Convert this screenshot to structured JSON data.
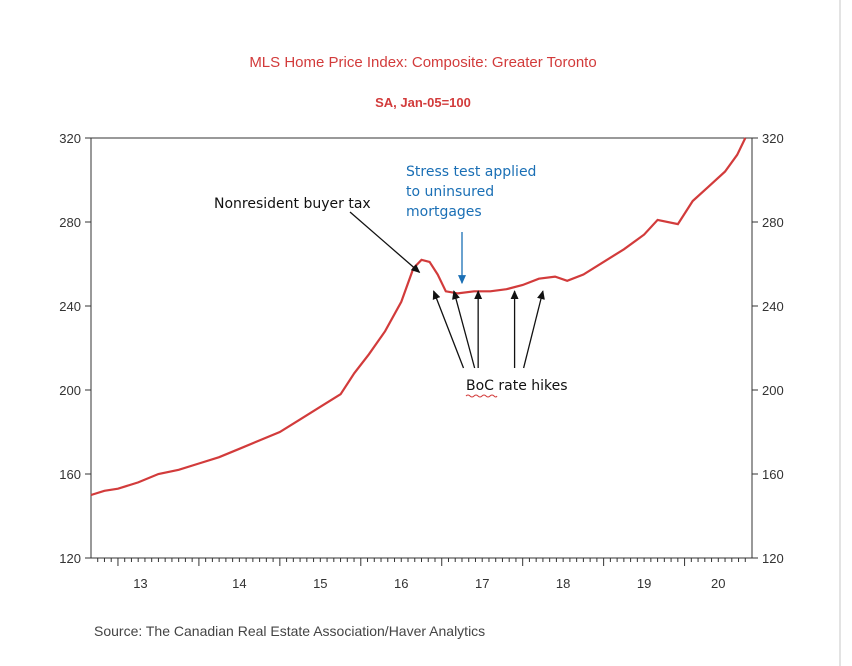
{
  "chart_data": {
    "type": "line",
    "title": "MLS Home Price Index: Composite: Greater Toronto",
    "subtitle": "SA, Jan-05=100",
    "xlabel": "",
    "ylabel": "",
    "x_ticks": [
      "13",
      "14",
      "15",
      "16",
      "17",
      "18",
      "19",
      "20"
    ],
    "y_ticks": [
      "120",
      "160",
      "200",
      "240",
      "280",
      "320"
    ],
    "ylim": [
      120,
      320
    ],
    "xlim": [
      2012.667,
      2020.833
    ],
    "grid": false,
    "series": [
      {
        "color": "#d23b3b",
        "x": [
          2012.667,
          2012.833,
          2013.0,
          2013.25,
          2013.5,
          2013.75,
          2014.0,
          2014.25,
          2014.5,
          2014.75,
          2015.0,
          2015.25,
          2015.5,
          2015.75,
          2015.92,
          2016.1,
          2016.3,
          2016.5,
          2016.65,
          2016.75,
          2016.85,
          2016.95,
          2017.05,
          2017.2,
          2017.4,
          2017.6,
          2017.8,
          2018.0,
          2018.2,
          2018.4,
          2018.55,
          2018.75,
          2019.0,
          2019.25,
          2019.5,
          2019.667,
          2019.917,
          2020.1,
          2020.3,
          2020.5,
          2020.65,
          2020.75
        ],
        "values": [
          150,
          152,
          153,
          156,
          160,
          162,
          165,
          168,
          172,
          176,
          180,
          186,
          192,
          198,
          208,
          217,
          228,
          242,
          258,
          262,
          261,
          255,
          247,
          246,
          247,
          247,
          248,
          250,
          253,
          254,
          252,
          255,
          261,
          267,
          274,
          281,
          279,
          290,
          297,
          304,
          312,
          320
        ]
      }
    ],
    "annotations": [
      {
        "text": "Nonresident buyer tax",
        "x": 2016.8,
        "y": 256
      },
      {
        "text": "Stress test applied",
        "line2": "to uninsured",
        "line3": "mortgages",
        "x": 2017.25,
        "y": 249
      },
      {
        "text": "BoC rate hikes",
        "arrow_x": [
          2016.9,
          2017.15,
          2017.45,
          2017.9,
          2018.25
        ],
        "arrow_y": 249
      }
    ],
    "source": "Source:   The Canadian Real Estate Association/Haver Analytics"
  },
  "colors": {
    "line": "#d23b3b",
    "title": "#d23b3b",
    "annotation_blue": "#1a6fb5",
    "axis": "#333333"
  }
}
